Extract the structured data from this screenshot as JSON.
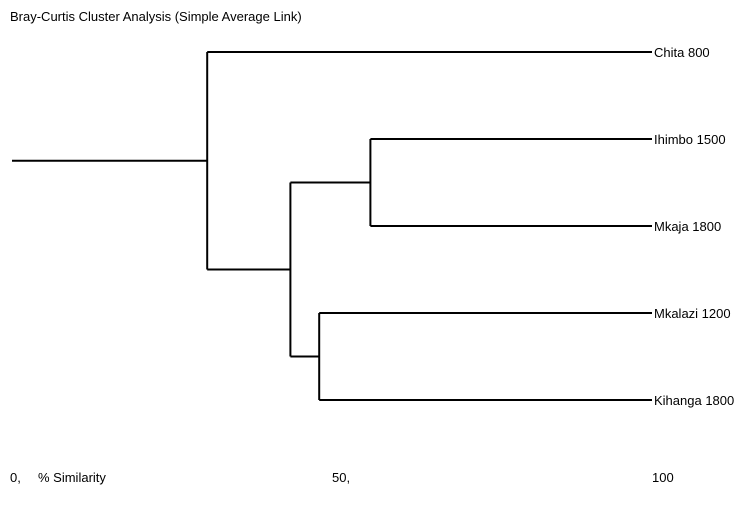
{
  "title": "Bray-Curtis Cluster Analysis (Simple Average Link)",
  "chart_data": {
    "type": "dendrogram",
    "method": "Bray-Curtis, simple average link",
    "axis": {
      "label": "% Similarity",
      "range": [
        0,
        100
      ],
      "ticks": [
        {
          "value": 0,
          "label": "0,"
        },
        {
          "value": 50,
          "label": "50,"
        },
        {
          "value": 100,
          "label": "100"
        }
      ]
    },
    "leaves": [
      "Chita 800",
      "Ihimbo 1500",
      "Mkaja 1800",
      "Mkalazi 1200",
      "Kihanga 1800"
    ],
    "merges": [
      {
        "id": "c1",
        "children": [
          "Ihimbo 1500",
          "Mkaja 1800"
        ],
        "similarity": 56
      },
      {
        "id": "c2",
        "children": [
          "Mkalazi 1200",
          "Kihanga 1800"
        ],
        "similarity": 48
      },
      {
        "id": "c3",
        "children": [
          "c1",
          "c2"
        ],
        "similarity": 43.5
      },
      {
        "id": "c4",
        "children": [
          "Chita 800",
          "c3"
        ],
        "similarity": 30.5
      }
    ]
  }
}
